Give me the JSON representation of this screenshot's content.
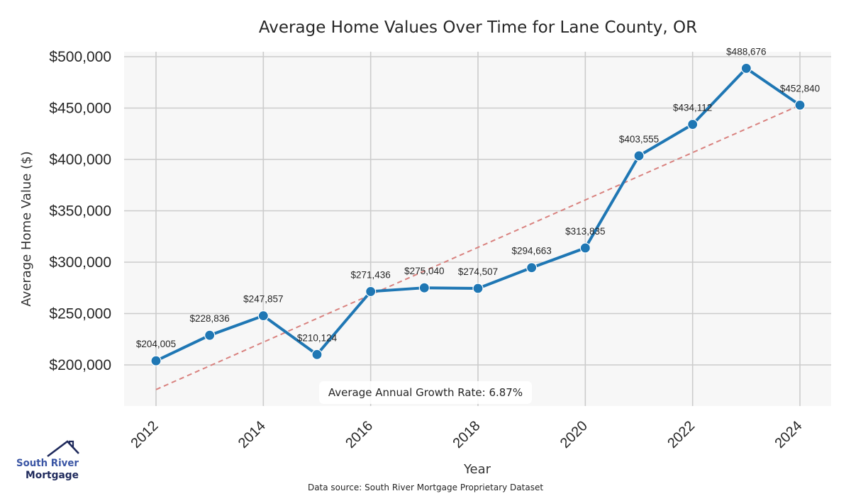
{
  "chart_data": {
    "type": "line",
    "title": "Average Home Values Over Time for Lane County, OR",
    "xlabel": "Year",
    "ylabel": "Average Home Value ($)",
    "x": [
      2012,
      2013,
      2014,
      2015,
      2016,
      2017,
      2018,
      2019,
      2020,
      2021,
      2022,
      2023,
      2024
    ],
    "series": [
      {
        "name": "Average Home Value",
        "color": "#1f77b4",
        "values": [
          204005,
          228836,
          247857,
          210124,
          271436,
          275040,
          274507,
          294663,
          313835,
          403555,
          434112,
          488676,
          452840
        ],
        "labels": [
          "$204,005",
          "$228,836",
          "$247,857",
          "$210,124",
          "$271,436",
          "$275,040",
          "$274,507",
          "$294,663",
          "$313,835",
          "$403,555",
          "$434,112",
          "$488,676",
          "$452,840"
        ]
      }
    ],
    "trend_line": {
      "name": "Average Annual Growth Rate trend",
      "color": "#d9827f",
      "style": "dashed",
      "x": [
        2012,
        2024
      ],
      "values": [
        176000,
        452840
      ]
    },
    "xticks": [
      2012,
      2014,
      2016,
      2018,
      2020,
      2022,
      2024
    ],
    "xtick_labels": [
      "2012",
      "2014",
      "2016",
      "2018",
      "2020",
      "2022",
      "2024"
    ],
    "yticks": [
      200000,
      250000,
      300000,
      350000,
      400000,
      450000,
      500000
    ],
    "ytick_labels": [
      "$200,000",
      "$250,000",
      "$300,000",
      "$350,000",
      "$400,000",
      "$450,000",
      "$500,000"
    ],
    "xlim": [
      2011.4,
      2024.6
    ],
    "ylim": [
      160000,
      505000
    ],
    "grid": true,
    "legend": "none",
    "annotation": "Average Annual Growth Rate: 6.87%",
    "annotation_position": "bottom-center"
  },
  "footer": {
    "source": "Data source: South River Mortgage Proprietary Dataset"
  },
  "logo": {
    "line1": "South River",
    "line2": "Mortgage",
    "icon": "house-roof-icon"
  },
  "colors": {
    "plot_background": "#f7f7f7",
    "grid": "#cccccc",
    "line": "#1f77b4",
    "trend": "#d9827f",
    "logo_primary": "#3a55a4",
    "logo_dark": "#1f2a5c"
  }
}
